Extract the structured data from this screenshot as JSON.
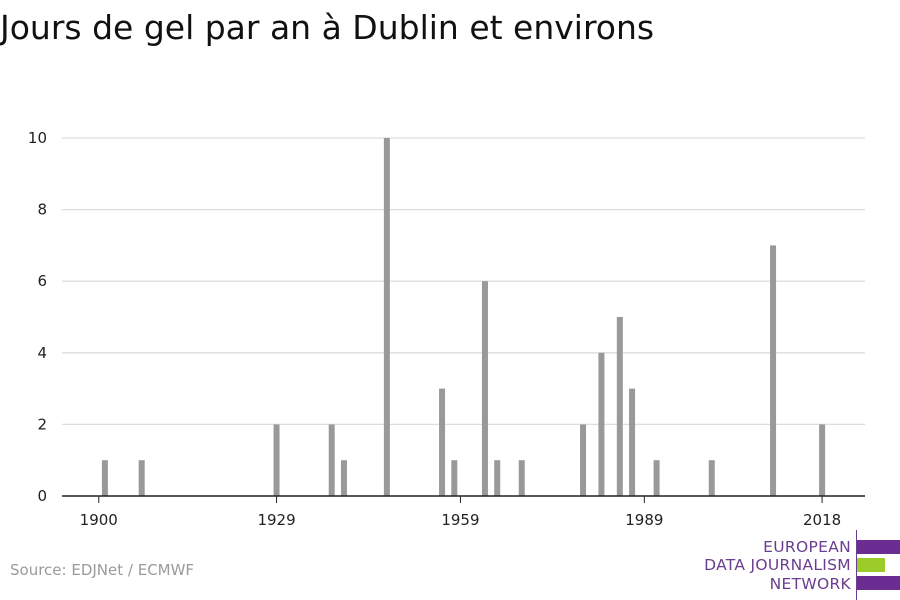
{
  "chart_data": {
    "type": "bar",
    "title": "Jours de gel par an à Dublin et environs",
    "xlabel": "",
    "ylabel": "",
    "x_tick_labels": [
      "1900",
      "1929",
      "1959",
      "1989",
      "2018"
    ],
    "x_ticks": [
      1900,
      1929,
      1959,
      1989,
      2018
    ],
    "xlim": [
      1894,
      2025
    ],
    "ylim": [
      0,
      10
    ],
    "y_ticks": [
      0,
      2,
      4,
      6,
      8,
      10
    ],
    "grid": true,
    "bar_color": "#999999",
    "points": [
      {
        "x": 1901,
        "y": 1
      },
      {
        "x": 1907,
        "y": 1
      },
      {
        "x": 1929,
        "y": 2
      },
      {
        "x": 1938,
        "y": 2
      },
      {
        "x": 1940,
        "y": 1
      },
      {
        "x": 1947,
        "y": 10
      },
      {
        "x": 1956,
        "y": 3
      },
      {
        "x": 1958,
        "y": 1
      },
      {
        "x": 1963,
        "y": 6
      },
      {
        "x": 1965,
        "y": 1
      },
      {
        "x": 1969,
        "y": 1
      },
      {
        "x": 1979,
        "y": 2
      },
      {
        "x": 1982,
        "y": 4
      },
      {
        "x": 1985,
        "y": 5
      },
      {
        "x": 1987,
        "y": 3
      },
      {
        "x": 1991,
        "y": 1
      },
      {
        "x": 2000,
        "y": 1
      },
      {
        "x": 2010,
        "y": 7
      },
      {
        "x": 2018,
        "y": 2
      }
    ]
  },
  "footer": {
    "source": "Source: EDJNet / ECMWF"
  },
  "logo": {
    "line1": "EUROPEAN",
    "line2": "DATA JOURNALISM",
    "line3": "NETWORK",
    "colors": {
      "text": "#6b3d8f",
      "bar_purple": "#6b2d91",
      "bar_green": "#9ccc2a"
    }
  }
}
